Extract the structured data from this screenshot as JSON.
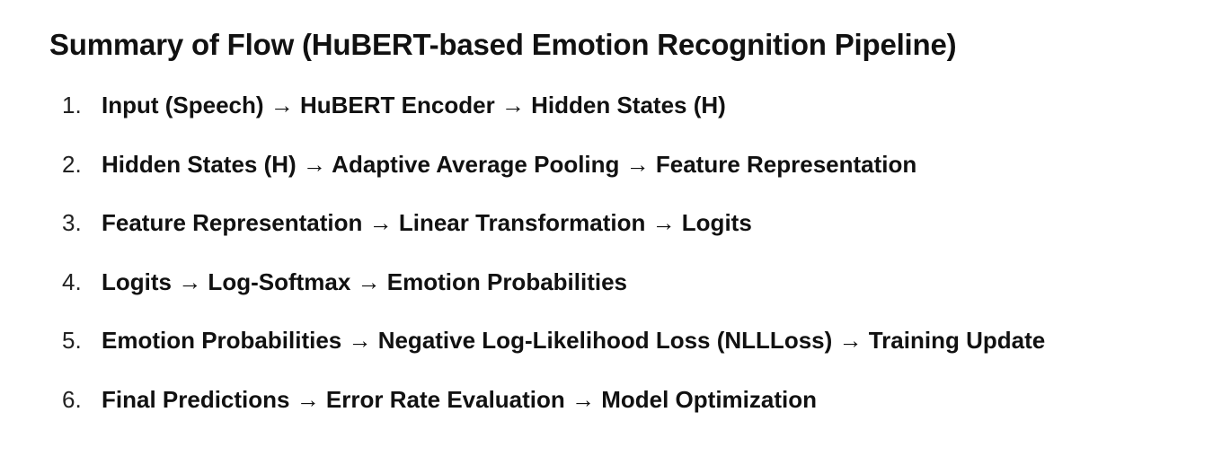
{
  "document": {
    "title": "Summary of Flow (HuBERT-based Emotion Recognition Pipeline)",
    "steps": [
      {
        "number": "1.",
        "text": "Input (Speech) → HuBERT Encoder → Hidden States (H)"
      },
      {
        "number": "2.",
        "text": "Hidden States (H) → Adaptive Average Pooling → Feature Representation"
      },
      {
        "number": "3.",
        "text": "Feature Representation → Linear Transformation → Logits"
      },
      {
        "number": "4.",
        "text": "Logits → Log-Softmax → Emotion Probabilities"
      },
      {
        "number": "5.",
        "text": "Emotion Probabilities → Negative Log-Likelihood Loss (NLLLoss) → Training Update"
      },
      {
        "number": "6.",
        "text": "Final Predictions → Error Rate Evaluation → Model Optimization"
      }
    ]
  }
}
